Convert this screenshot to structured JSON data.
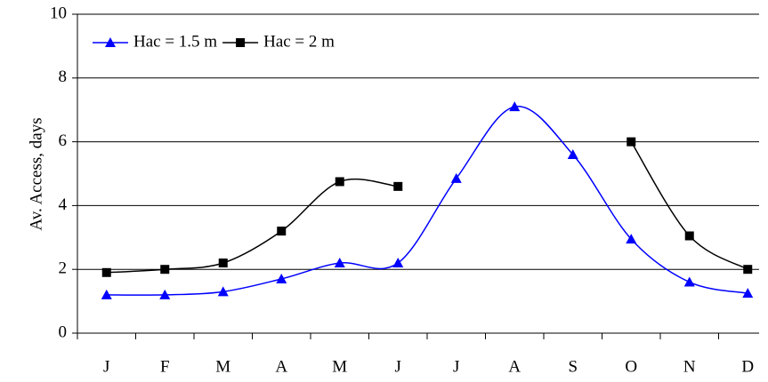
{
  "chart_data": {
    "type": "line",
    "y_label": "Av. Access, days",
    "categories": [
      "J",
      "F",
      "M",
      "A",
      "M",
      "J",
      "J",
      "A",
      "S",
      "O",
      "N",
      "D"
    ],
    "series": [
      {
        "name": "Hac = 1.5 m",
        "color": "#0000ff",
        "marker": "triangle",
        "values": [
          1.2,
          1.2,
          1.3,
          1.7,
          2.2,
          2.2,
          4.85,
          7.1,
          5.6,
          2.95,
          1.6,
          1.25
        ]
      },
      {
        "name": "Hac = 2 m",
        "color": "#000000",
        "marker": "square",
        "values": [
          1.9,
          2.0,
          2.2,
          3.2,
          4.75,
          4.6,
          null,
          null,
          null,
          6.0,
          3.05,
          2.0
        ]
      }
    ],
    "ylim": [
      0,
      10
    ],
    "yticks": [
      0,
      2,
      4,
      6,
      8,
      10
    ],
    "grid": true,
    "smooth": true
  }
}
